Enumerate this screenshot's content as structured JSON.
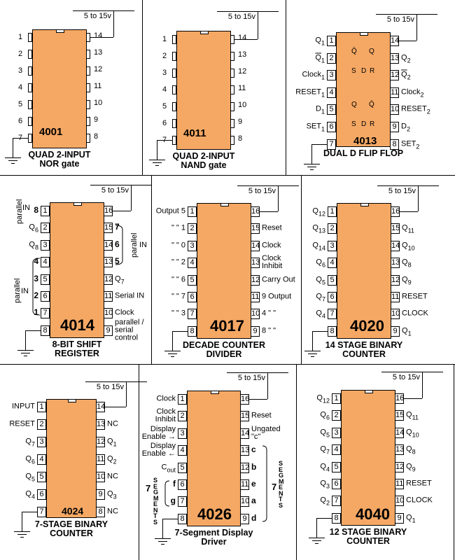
{
  "chips": [
    {
      "number": "4001",
      "title": "QUAD  2-INPUT\nNOR  gate",
      "supply": "5 to 15v",
      "left_pins": [
        "1",
        "2",
        "3",
        "4",
        "5",
        "6",
        "7"
      ],
      "right_pins": [
        "14",
        "13",
        "12",
        "11",
        "10",
        "9",
        "8"
      ],
      "left_labels": [],
      "right_labels": []
    },
    {
      "number": "4011",
      "title": "QUAD  2-INPUT\nNAND  gate",
      "supply": "5 to 15v",
      "left_pins": [
        "1",
        "2",
        "3",
        "4",
        "5",
        "6",
        "7"
      ],
      "right_pins": [
        "14",
        "13",
        "12",
        "11",
        "10",
        "9",
        "8"
      ],
      "left_labels": [],
      "right_labels": []
    },
    {
      "number": "4013",
      "title": "DUAL  D  FLIP FLOP",
      "supply": "5 to 15v",
      "left_pins": [
        "1",
        "2",
        "3",
        "4",
        "5",
        "6",
        "7"
      ],
      "right_pins": [
        "14",
        "13",
        "12",
        "11",
        "10",
        "9",
        "8"
      ],
      "left_labels": [
        {
          "t": "Q",
          "sub": "1"
        },
        {
          "t": "Q",
          "sub": "1",
          "bar": true
        },
        {
          "t": "Clock",
          "sub": "1"
        },
        {
          "t": "RESET",
          "sub": "1"
        },
        {
          "t": "D",
          "sub": "1"
        },
        {
          "t": "SET",
          "sub": "1"
        },
        ""
      ],
      "right_labels": [
        "",
        {
          "t": "Q",
          "sub": "2"
        },
        {
          "t": "Q",
          "sub": "2",
          "bar": true
        },
        {
          "t": "Clock",
          "sub": "2"
        },
        {
          "t": "RESET",
          "sub": "2"
        },
        {
          "t": "D",
          "sub": "2"
        },
        {
          "t": "SET",
          "sub": "2"
        }
      ],
      "internals": {
        "ff1": [
          "Q̄",
          "Q",
          "S",
          "D",
          "R"
        ],
        "ff2": [
          "Q",
          "Q̄",
          "S",
          "D",
          "R"
        ]
      }
    },
    {
      "number": "4014",
      "title": "8-BIT SHIFT\nREGISTER",
      "supply": "5 to 15v",
      "left_pins": [
        "1",
        "2",
        "3",
        "4",
        "5",
        "6",
        "7",
        "8"
      ],
      "right_pins": [
        "16",
        "15",
        "14",
        "13",
        "12",
        "11",
        "10",
        "9"
      ],
      "left_labels": [
        {
          "t": "8",
          "bold": true
        },
        {
          "t": "Q",
          "sub": "6"
        },
        {
          "t": "Q",
          "sub": "8"
        },
        {
          "t": "4",
          "bold": true
        },
        {
          "t": "3",
          "bold": true
        },
        {
          "t": "2",
          "bold": true
        },
        {
          "t": "1",
          "bold": true
        },
        ""
      ],
      "right_labels": [
        "",
        {
          "t": "7",
          "bold": true
        },
        {
          "t": "6",
          "bold": true
        },
        {
          "t": "5",
          "bold": true
        },
        {
          "t": "Q",
          "sub": "7"
        },
        "Serial IN",
        "Clock",
        "parallel /\nserial\ncontrol"
      ],
      "annotations": {
        "parallel": "parallel",
        "in": "IN"
      }
    },
    {
      "number": "4017",
      "title": "DECADE COUNTER\nDIVIDER",
      "supply": "5 to 15v",
      "left_pins": [
        "1",
        "2",
        "3",
        "4",
        "5",
        "6",
        "7",
        "8"
      ],
      "right_pins": [
        "16",
        "15",
        "14",
        "13",
        "12",
        "11",
        "10",
        "9"
      ],
      "left_labels": [
        "Output  5",
        "\"   \"    1",
        "\"   \"    0",
        "\"   \"    2",
        "\"   \"    6",
        "\"   \"    7",
        "\"   \"    3",
        ""
      ],
      "right_labels": [
        "",
        "Reset",
        "Clock",
        "Clock\nInhibit",
        "Carry Out",
        "9  Output",
        "4    \"   \"",
        "8    \"   \""
      ]
    },
    {
      "number": "4020",
      "title": "14 STAGE BINARY\nCOUNTER",
      "supply": "5 to 15v",
      "left_pins": [
        "1",
        "2",
        "3",
        "4",
        "5",
        "6",
        "7",
        "8"
      ],
      "right_pins": [
        "16",
        "15",
        "14",
        "13",
        "12",
        "11",
        "10",
        "9"
      ],
      "left_labels": [
        {
          "t": "Q",
          "sub": "12"
        },
        {
          "t": "Q",
          "sub": "13"
        },
        {
          "t": "Q",
          "sub": "14"
        },
        {
          "t": "Q",
          "sub": "6"
        },
        {
          "t": "Q",
          "sub": "5"
        },
        {
          "t": "Q",
          "sub": "7"
        },
        {
          "t": "Q",
          "sub": "4"
        },
        ""
      ],
      "right_labels": [
        "",
        {
          "t": "Q",
          "sub": "11"
        },
        {
          "t": "Q",
          "sub": "10"
        },
        {
          "t": "Q",
          "sub": "8"
        },
        {
          "t": "Q",
          "sub": "9"
        },
        "RESET",
        "CLOCK",
        {
          "t": "Q",
          "sub": "1"
        }
      ]
    },
    {
      "number": "4024",
      "title": "7-STAGE BINARY\nCOUNTER",
      "supply": "5 to 15v",
      "left_pins": [
        "1",
        "2",
        "3",
        "4",
        "5",
        "6",
        "7"
      ],
      "right_pins": [
        "14",
        "13",
        "12",
        "11",
        "10",
        "9",
        "8"
      ],
      "left_labels": [
        "INPUT",
        "RESET",
        {
          "t": "Q",
          "sub": "7"
        },
        {
          "t": "Q",
          "sub": "6"
        },
        {
          "t": "Q",
          "sub": "5"
        },
        {
          "t": "Q",
          "sub": "4"
        },
        ""
      ],
      "right_labels": [
        "",
        "NC",
        {
          "t": "Q",
          "sub": "1"
        },
        {
          "t": "Q",
          "sub": "2"
        },
        "NC",
        {
          "t": "Q",
          "sub": "3"
        },
        "NC"
      ]
    },
    {
      "number": "4026",
      "title": "7-Segment Display\nDriver",
      "supply": "5 to 15v",
      "left_pins": [
        "1",
        "2",
        "3",
        "4",
        "5",
        "6",
        "7",
        "8"
      ],
      "right_pins": [
        "16",
        "15",
        "14",
        "13",
        "12",
        "11",
        "10",
        "9"
      ],
      "left_labels": [
        "Clock",
        "Clock\nInhibit",
        "Display\nEnable →",
        "Display\nEnable ←",
        {
          "t": "C",
          "sub": "out"
        },
        {
          "t": "f",
          "bold": true
        },
        {
          "t": "g",
          "bold": true
        },
        ""
      ],
      "right_labels": [
        "",
        "Reset",
        "Ungated\n\"c\"",
        {
          "t": "c",
          "bold": true
        },
        {
          "t": "b",
          "bold": true
        },
        {
          "t": "e",
          "bold": true
        },
        {
          "t": "a",
          "bold": true
        },
        {
          "t": "d",
          "bold": true
        }
      ],
      "annotations": {
        "seven": "7",
        "segments": "S\nE\nG\nM\nE\nN\nT\nS"
      }
    },
    {
      "number": "4040",
      "title": "12 STAGE BINARY\nCOUNTER",
      "supply": "5 to 15v",
      "left_pins": [
        "1",
        "2",
        "3",
        "4",
        "5",
        "6",
        "7",
        "8"
      ],
      "right_pins": [
        "16",
        "15",
        "14",
        "13",
        "12",
        "11",
        "10",
        "9"
      ],
      "left_labels": [
        {
          "t": "Q",
          "sub": "12"
        },
        {
          "t": "Q",
          "sub": "6"
        },
        {
          "t": "Q",
          "sub": "5"
        },
        {
          "t": "Q",
          "sub": "7"
        },
        {
          "t": "Q",
          "sub": "4"
        },
        {
          "t": "Q",
          "sub": "3"
        },
        {
          "t": "Q",
          "sub": "2"
        },
        ""
      ],
      "right_labels": [
        "",
        {
          "t": "Q",
          "sub": "11"
        },
        {
          "t": "Q",
          "sub": "10"
        },
        {
          "t": "Q",
          "sub": "8"
        },
        {
          "t": "Q",
          "sub": "9"
        },
        "RESET",
        "CLOCK",
        {
          "t": "Q",
          "sub": "1"
        }
      ]
    }
  ],
  "colors": {
    "chip": "#f5a864",
    "flipflop": "#fde0b8",
    "line": "#000000"
  }
}
